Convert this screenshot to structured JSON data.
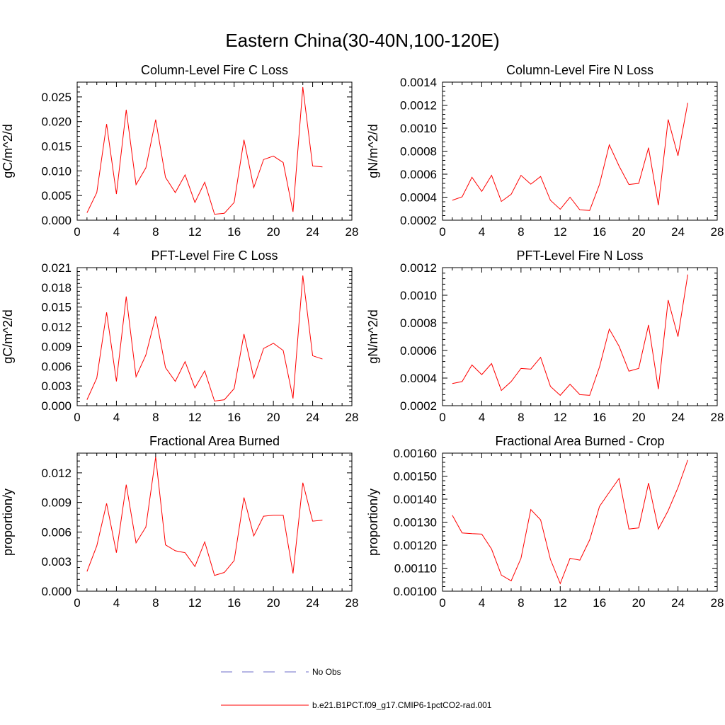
{
  "figure": {
    "title": "Eastern China(30-40N,100-120E)"
  },
  "legend": {
    "entries": [
      {
        "label": "No Obs",
        "style": "dashed",
        "color": "#6b6bc8"
      },
      {
        "label": "b.e21.B1PCT.f09_g17.CMIP6-1pctCO2-rad.001",
        "style": "solid",
        "color": "#ff0000"
      }
    ]
  },
  "chart_data": [
    {
      "type": "line",
      "title": "Column-Level Fire C Loss",
      "ylabel": "gC/m^2/d",
      "xlim": [
        0,
        28
      ],
      "xticks": [
        0,
        4,
        8,
        12,
        16,
        20,
        24,
        28
      ],
      "ylim": [
        0,
        0.028
      ],
      "yticks": [
        "0.000",
        "0.005",
        "0.010",
        "0.015",
        "0.020",
        "0.025"
      ],
      "ytick_values": [
        0,
        0.005,
        0.01,
        0.015,
        0.02,
        0.025
      ],
      "grid": false,
      "series": [
        {
          "color": "#ff0000",
          "x": [
            1,
            2,
            3,
            4,
            5,
            6,
            7,
            8,
            9,
            10,
            11,
            12,
            13,
            14,
            15,
            16,
            17,
            18,
            19,
            20,
            21,
            22,
            23,
            24,
            25
          ],
          "values": [
            0.0015,
            0.0056,
            0.0195,
            0.0053,
            0.0224,
            0.0072,
            0.0106,
            0.0204,
            0.0087,
            0.0056,
            0.0092,
            0.0036,
            0.0077,
            0.0012,
            0.0014,
            0.0036,
            0.0163,
            0.0066,
            0.0123,
            0.013,
            0.0117,
            0.0017,
            0.027,
            0.011,
            0.0108
          ]
        }
      ]
    },
    {
      "type": "line",
      "title": "Column-Level Fire N Loss",
      "ylabel": "gN/m^2/d",
      "xlim": [
        0,
        28
      ],
      "xticks": [
        0,
        4,
        8,
        12,
        16,
        20,
        24,
        28
      ],
      "ylim": [
        0.0002,
        0.0014
      ],
      "yticks": [
        "0.0002",
        "0.0004",
        "0.0006",
        "0.0008",
        "0.0010",
        "0.0012",
        "0.0014"
      ],
      "ytick_values": [
        0.0002,
        0.0004,
        0.0006,
        0.0008,
        0.001,
        0.0012,
        0.0014
      ],
      "grid": false,
      "series": [
        {
          "color": "#ff0000",
          "x": [
            1,
            2,
            3,
            4,
            5,
            6,
            7,
            8,
            9,
            10,
            11,
            12,
            13,
            14,
            15,
            16,
            17,
            18,
            19,
            20,
            21,
            22,
            23,
            24,
            25
          ],
          "values": [
            0.000373,
            0.000403,
            0.000573,
            0.00045,
            0.00059,
            0.000363,
            0.000425,
            0.00059,
            0.000513,
            0.00058,
            0.000373,
            0.000295,
            0.0004,
            0.00029,
            0.000285,
            0.00051,
            0.000855,
            0.00067,
            0.00051,
            0.00052,
            0.00083,
            0.00033,
            0.001075,
            0.00076,
            0.00122
          ]
        }
      ]
    },
    {
      "type": "line",
      "title": "PFT-Level Fire C Loss",
      "ylabel": "gC/m^2/d",
      "xlim": [
        0,
        28
      ],
      "xticks": [
        0,
        4,
        8,
        12,
        16,
        20,
        24,
        28
      ],
      "ylim": [
        0,
        0.021
      ],
      "yticks": [
        "0.000",
        "0.003",
        "0.006",
        "0.009",
        "0.012",
        "0.015",
        "0.018",
        "0.021"
      ],
      "ytick_values": [
        0,
        0.003,
        0.006,
        0.009,
        0.012,
        0.015,
        0.018,
        0.021
      ],
      "grid": false,
      "series": [
        {
          "color": "#ff0000",
          "x": [
            1,
            2,
            3,
            4,
            5,
            6,
            7,
            8,
            9,
            10,
            11,
            12,
            13,
            14,
            15,
            16,
            17,
            18,
            19,
            20,
            21,
            22,
            23,
            24,
            25
          ],
          "values": [
            0.0009,
            0.0042,
            0.0142,
            0.0037,
            0.0166,
            0.0044,
            0.0077,
            0.0136,
            0.0058,
            0.0037,
            0.0067,
            0.0027,
            0.0053,
            0.0007,
            0.0009,
            0.0026,
            0.0109,
            0.0042,
            0.0087,
            0.0095,
            0.0084,
            0.0011,
            0.0198,
            0.0076,
            0.0071
          ]
        }
      ]
    },
    {
      "type": "line",
      "title": "PFT-Level Fire N Loss",
      "ylabel": "gN/m^2/d",
      "xlim": [
        0,
        28
      ],
      "xticks": [
        0,
        4,
        8,
        12,
        16,
        20,
        24,
        28
      ],
      "ylim": [
        0.0002,
        0.0012
      ],
      "yticks": [
        "0.0002",
        "0.0004",
        "0.0006",
        "0.0008",
        "0.0010",
        "0.0012"
      ],
      "ytick_values": [
        0.0002,
        0.0004,
        0.0006,
        0.0008,
        0.001,
        0.0012
      ],
      "grid": false,
      "series": [
        {
          "color": "#ff0000",
          "x": [
            1,
            2,
            3,
            4,
            5,
            6,
            7,
            8,
            9,
            10,
            11,
            12,
            13,
            14,
            15,
            16,
            17,
            18,
            19,
            20,
            21,
            22,
            23,
            24,
            25
          ],
          "values": [
            0.00036,
            0.000375,
            0.000495,
            0.000425,
            0.000505,
            0.00031,
            0.000375,
            0.00047,
            0.000465,
            0.00055,
            0.00034,
            0.000275,
            0.000355,
            0.00028,
            0.000275,
            0.00048,
            0.000755,
            0.00063,
            0.00045,
            0.00047,
            0.000785,
            0.00032,
            0.000965,
            0.0007,
            0.00115
          ]
        }
      ]
    },
    {
      "type": "line",
      "title": "Fractional Area Burned",
      "ylabel": "proportion/y",
      "xlim": [
        0,
        28
      ],
      "xticks": [
        0,
        4,
        8,
        12,
        16,
        20,
        24,
        28
      ],
      "ylim": [
        0,
        0.014
      ],
      "yticks": [
        "0.000",
        "0.003",
        "0.006",
        "0.009",
        "0.012"
      ],
      "ytick_values": [
        0,
        0.003,
        0.006,
        0.009,
        0.012
      ],
      "grid": false,
      "series": [
        {
          "color": "#ff0000",
          "x": [
            1,
            2,
            3,
            4,
            5,
            6,
            7,
            8,
            9,
            10,
            11,
            12,
            13,
            14,
            15,
            16,
            17,
            18,
            19,
            20,
            21,
            22,
            23,
            24,
            25
          ],
          "values": [
            0.002,
            0.0046,
            0.0089,
            0.0039,
            0.0108,
            0.0049,
            0.0065,
            0.0136,
            0.0047,
            0.0041,
            0.0039,
            0.0025,
            0.005,
            0.0016,
            0.0019,
            0.0031,
            0.0095,
            0.0056,
            0.0076,
            0.0077,
            0.0077,
            0.0018,
            0.011,
            0.0071,
            0.0072
          ]
        }
      ]
    },
    {
      "type": "line",
      "title": "Fractional Area Burned - Crop",
      "ylabel": "proportion/y",
      "xlim": [
        0,
        28
      ],
      "xticks": [
        0,
        4,
        8,
        12,
        16,
        20,
        24,
        28
      ],
      "ylim": [
        0.001,
        0.0016
      ],
      "yticks": [
        "0.00100",
        "0.00110",
        "0.00120",
        "0.00130",
        "0.00140",
        "0.00150",
        "0.00160"
      ],
      "ytick_values": [
        0.001,
        0.0011,
        0.0012,
        0.0013,
        0.0014,
        0.0015,
        0.0016
      ],
      "grid": false,
      "series": [
        {
          "color": "#ff0000",
          "x": [
            1,
            2,
            3,
            4,
            5,
            6,
            7,
            8,
            9,
            10,
            11,
            12,
            13,
            14,
            15,
            16,
            17,
            18,
            19,
            20,
            21,
            22,
            23,
            24,
            25
          ],
          "values": [
            0.00133,
            0.001253,
            0.00125,
            0.001248,
            0.001183,
            0.00107,
            0.001045,
            0.001143,
            0.001355,
            0.00131,
            0.001138,
            0.001033,
            0.001143,
            0.001135,
            0.001223,
            0.001368,
            0.00143,
            0.00149,
            0.00127,
            0.001275,
            0.00147,
            0.00127,
            0.00135,
            0.00145,
            0.00157
          ]
        }
      ]
    }
  ]
}
